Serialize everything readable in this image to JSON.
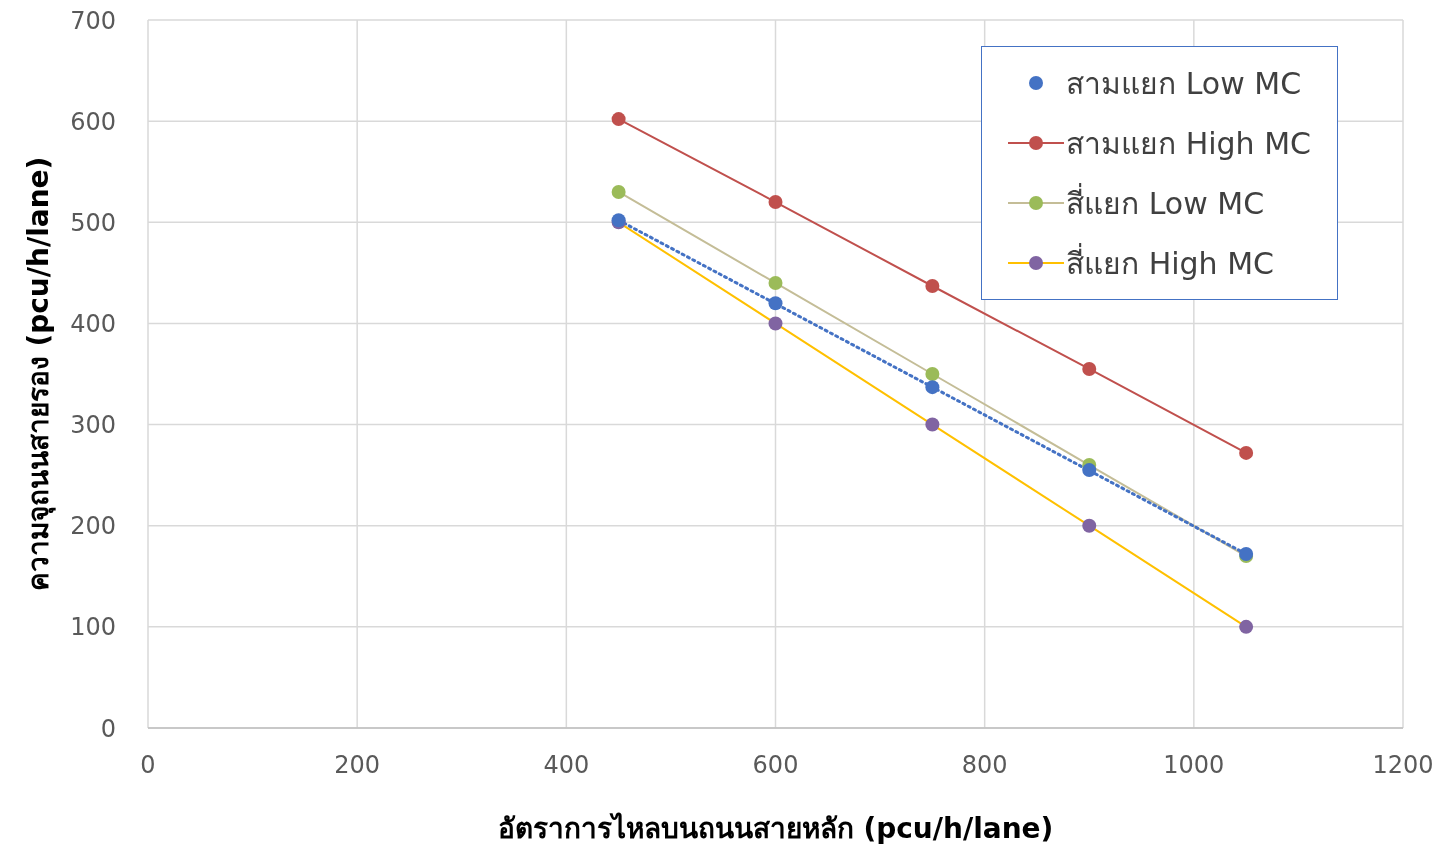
{
  "chart_data": {
    "type": "line",
    "xlabel": "อัตราการไหลบนถนนสายหลัก (pcu/h/lane)",
    "ylabel": "ความจุถนนสายรอง (pcu/h/lane)",
    "x": [
      450,
      600,
      750,
      900,
      1050
    ],
    "series": [
      {
        "name": "สามแยก Low MC",
        "type": "scatter",
        "color": "#4472c4",
        "values": [
          502,
          420,
          337,
          255,
          172
        ]
      },
      {
        "name": "สามแยก High MC",
        "color": "#c0504d",
        "values": [
          602,
          520,
          437,
          355,
          272
        ]
      },
      {
        "name": "สี่แยก Low MC",
        "color": "#c4bd97",
        "colors": [
          "#9bbb59",
          "#9bbb59",
          "#9bbb59",
          "#9bbb59",
          "#9bbb59"
        ],
        "values": [
          530,
          440,
          350,
          260,
          170
        ]
      },
      {
        "name": "สี่แยก High MC",
        "color": "#ffc000",
        "colors": [
          "#8064a2",
          "#8064a2",
          "#8064a2",
          "#8064a2",
          "#8064a2"
        ],
        "values": [
          500,
          400,
          300,
          200,
          100
        ]
      },
      {
        "color": "#4472c4",
        "x": [
          450,
          1050
        ],
        "values": [
          502,
          172
        ],
        "line_style": "dotted",
        "marker": "none"
      }
    ],
    "xlim": [
      0,
      1200
    ],
    "xticks": [
      0,
      200,
      400,
      600,
      800,
      1000,
      1200
    ],
    "ylim": [
      0,
      700
    ],
    "yticks": [
      0,
      100,
      200,
      300,
      400,
      500,
      600,
      700
    ],
    "grid": true,
    "legend": "top right",
    "marker": "circle",
    "line_style": "solid"
  }
}
